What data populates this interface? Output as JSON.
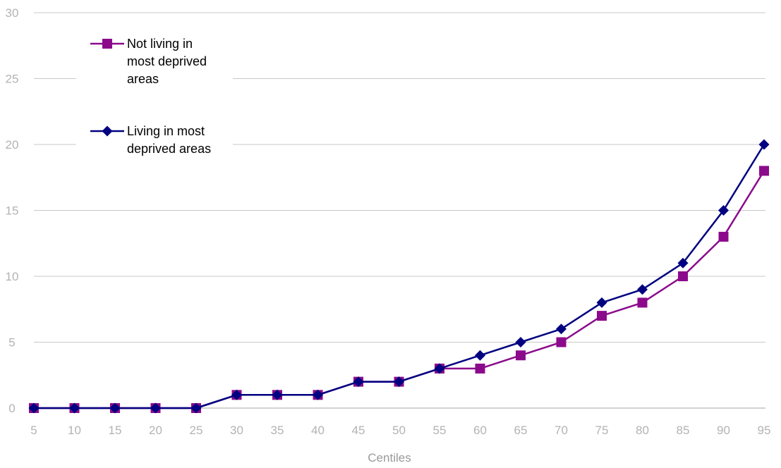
{
  "chart_data": {
    "type": "line",
    "title": "",
    "xlabel": "Centiles",
    "ylabel": "",
    "categories": [
      "5",
      "10",
      "15",
      "20",
      "25",
      "30",
      "35",
      "40",
      "45",
      "50",
      "55",
      "60",
      "65",
      "70",
      "75",
      "80",
      "85",
      "90",
      "95"
    ],
    "ylim": [
      0,
      30
    ],
    "yticks": [
      0,
      5,
      10,
      15,
      20,
      25,
      30
    ],
    "grid": true,
    "legend_position": "top-left",
    "series": [
      {
        "name": "Not living in most deprived areas",
        "name_lines": [
          "Not living in",
          "most deprived",
          "areas"
        ],
        "color": "#8b0a8b",
        "marker": "square",
        "values": [
          0,
          0,
          0,
          0,
          0,
          1,
          1,
          1,
          2,
          2,
          3,
          3,
          4,
          5,
          7,
          8,
          10,
          13,
          18
        ]
      },
      {
        "name": "Living in most deprived areas",
        "name_lines": [
          "Living in most",
          "deprived areas"
        ],
        "color": "#000080",
        "marker": "diamond",
        "values": [
          0,
          0,
          0,
          0,
          0,
          1,
          1,
          1,
          2,
          2,
          3,
          4,
          5,
          6,
          8,
          9,
          11,
          15,
          20
        ]
      }
    ]
  }
}
